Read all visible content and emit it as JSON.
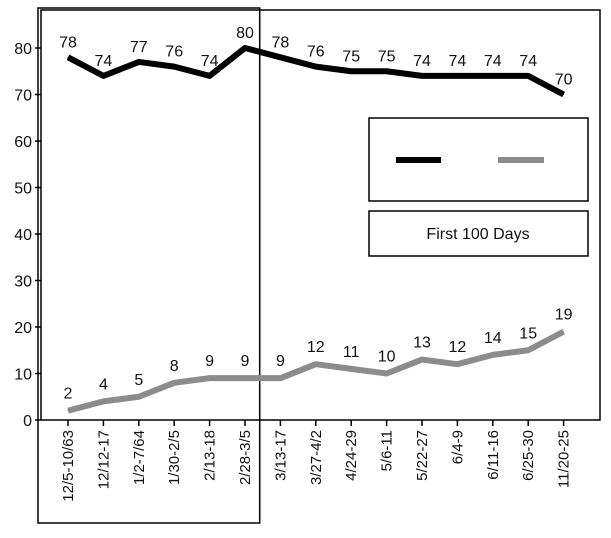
{
  "chart_data": {
    "type": "line",
    "categories": [
      "12/5-10/63",
      "12/12-17",
      "1/2-7/64",
      "1/30-2/5",
      "2/13-18",
      "2/28-3/5",
      "3/13-17",
      "3/27-4/2",
      "4/24-29",
      "5/6-11",
      "5/22-27",
      "6/4-9",
      "6/11-16",
      "6/25-30",
      "11/20-25"
    ],
    "series": [
      {
        "values": [
          78,
          74,
          77,
          76,
          74,
          80,
          78,
          76,
          75,
          75,
          74,
          74,
          74,
          74,
          70
        ],
        "color": "#000000"
      },
      {
        "values": [
          2,
          4,
          5,
          8,
          9,
          9,
          9,
          12,
          11,
          10,
          13,
          12,
          14,
          15,
          19
        ],
        "color": "#8c8c8c"
      }
    ],
    "yticks": [
      0,
      10,
      20,
      30,
      40,
      50,
      60,
      70,
      80
    ],
    "ylim": [
      0,
      85
    ],
    "grid": false,
    "highlight_region": {
      "from_index": 0,
      "to_index": 5
    },
    "legend": {
      "position": "right",
      "entries": [
        "",
        ""
      ]
    },
    "annotation": "First 100 Days"
  }
}
